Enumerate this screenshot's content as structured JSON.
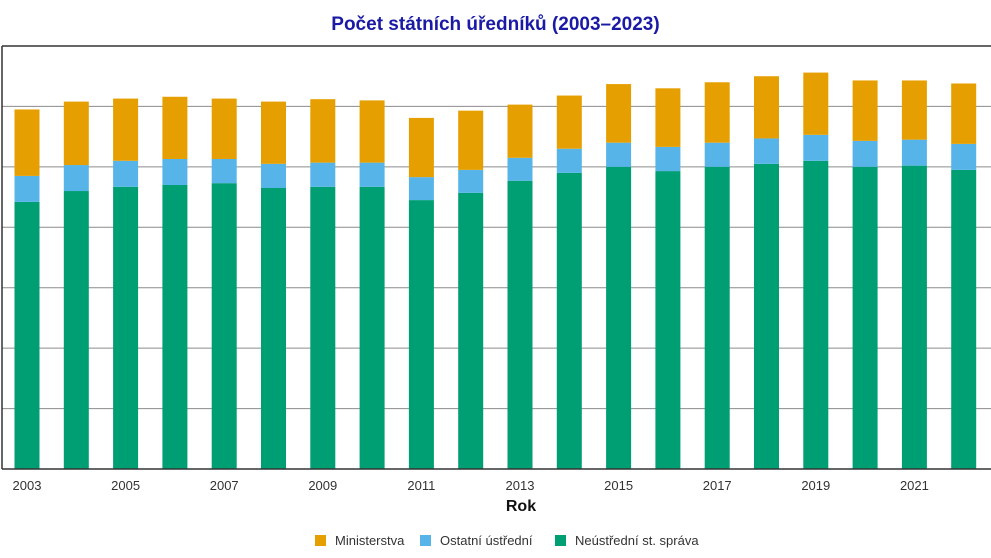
{
  "chart_data": {
    "type": "bar",
    "stacked": true,
    "title": "Počet státních úředníků (2003–2023)",
    "xlabel": "Rok",
    "ylabel": "",
    "categories": [
      "2003",
      "2004",
      "2005",
      "2006",
      "2007",
      "2008",
      "2009",
      "2010",
      "2011",
      "2012",
      "2013",
      "2014",
      "2015",
      "2016",
      "2017",
      "2018",
      "2019",
      "2020",
      "2021",
      "2022"
    ],
    "x_tick_labels": [
      "2003",
      "2005",
      "2007",
      "2009",
      "2011",
      "2013",
      "2015",
      "2017",
      "2019",
      "2021"
    ],
    "y_ticks": [
      0,
      1,
      2,
      3,
      4,
      5,
      6,
      7
    ],
    "ylim": [
      0,
      7
    ],
    "grid": true,
    "legend_position": "bottom",
    "series": [
      {
        "name": "Neústřední st. správa",
        "color": "#009e73",
        "values": [
          4.42,
          4.6,
          4.67,
          4.7,
          4.73,
          4.65,
          4.67,
          4.67,
          4.45,
          4.57,
          4.77,
          4.9,
          5.0,
          4.93,
          5.0,
          5.05,
          5.1,
          5.0,
          5.02,
          4.95
        ]
      },
      {
        "name": "Ostatní ústřední",
        "color": "#56b4e9",
        "values": [
          0.43,
          0.43,
          0.43,
          0.43,
          0.4,
          0.4,
          0.4,
          0.4,
          0.38,
          0.38,
          0.38,
          0.4,
          0.4,
          0.4,
          0.4,
          0.42,
          0.43,
          0.43,
          0.43,
          0.43
        ]
      },
      {
        "name": "Ministerstva",
        "color": "#e69f00",
        "values": [
          1.1,
          1.05,
          1.03,
          1.03,
          1.0,
          1.03,
          1.05,
          1.03,
          0.98,
          0.98,
          0.88,
          0.88,
          0.97,
          0.97,
          1.0,
          1.03,
          1.03,
          1.0,
          0.98,
          1.0
        ]
      }
    ]
  }
}
